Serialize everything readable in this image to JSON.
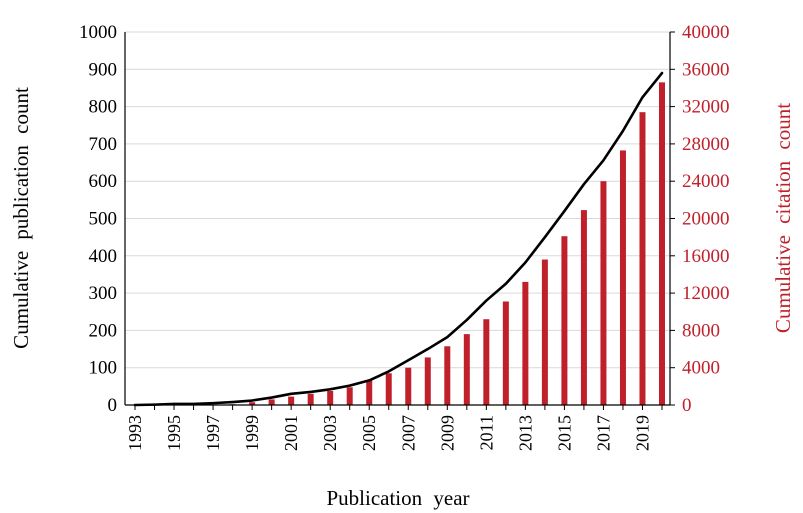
{
  "chart_data": {
    "type": "bar+line",
    "x": [
      1993,
      1994,
      1995,
      1996,
      1997,
      1998,
      1999,
      2000,
      2001,
      2002,
      2003,
      2004,
      2005,
      2006,
      2007,
      2008,
      2009,
      2010,
      2011,
      2012,
      2013,
      2014,
      2015,
      2016,
      2017,
      2018,
      2019,
      2020
    ],
    "x_tick_labels": [
      "1993",
      "1995",
      "1997",
      "1999",
      "2001",
      "2003",
      "2005",
      "2007",
      "2009",
      "2011",
      "2013",
      "2015",
      "2017",
      "2019"
    ],
    "xlabel": "Publication year",
    "series": [
      {
        "axis": "left",
        "kind": "line",
        "color": "#000000",
        "values": [
          0,
          1,
          3,
          3,
          5,
          8,
          12,
          20,
          30,
          35,
          42,
          52,
          66,
          90,
          120,
          150,
          182,
          228,
          280,
          325,
          382,
          450,
          520,
          592,
          656,
          735,
          825,
          890
        ]
      },
      {
        "axis": "right",
        "kind": "bar",
        "color": "#c0202a",
        "values": [
          0,
          0,
          0,
          0,
          0,
          80,
          300,
          600,
          900,
          1200,
          1500,
          1900,
          2700,
          3400,
          4000,
          5100,
          6300,
          7600,
          9200,
          11100,
          13200,
          15600,
          18100,
          20900,
          24000,
          27300,
          31400,
          34600
        ]
      }
    ],
    "left_axis": {
      "label": "Cumulative publication count",
      "ylim": [
        0,
        1000
      ],
      "ticks": [
        0,
        100,
        200,
        300,
        400,
        500,
        600,
        700,
        800,
        900,
        1000
      ]
    },
    "right_axis": {
      "label": "Cumulative citation count",
      "ylim": [
        0,
        40000
      ],
      "ticks": [
        0,
        4000,
        8000,
        12000,
        16000,
        20000,
        24000,
        28000,
        32000,
        36000,
        40000
      ],
      "color": "#c0202a"
    },
    "grid": true
  }
}
